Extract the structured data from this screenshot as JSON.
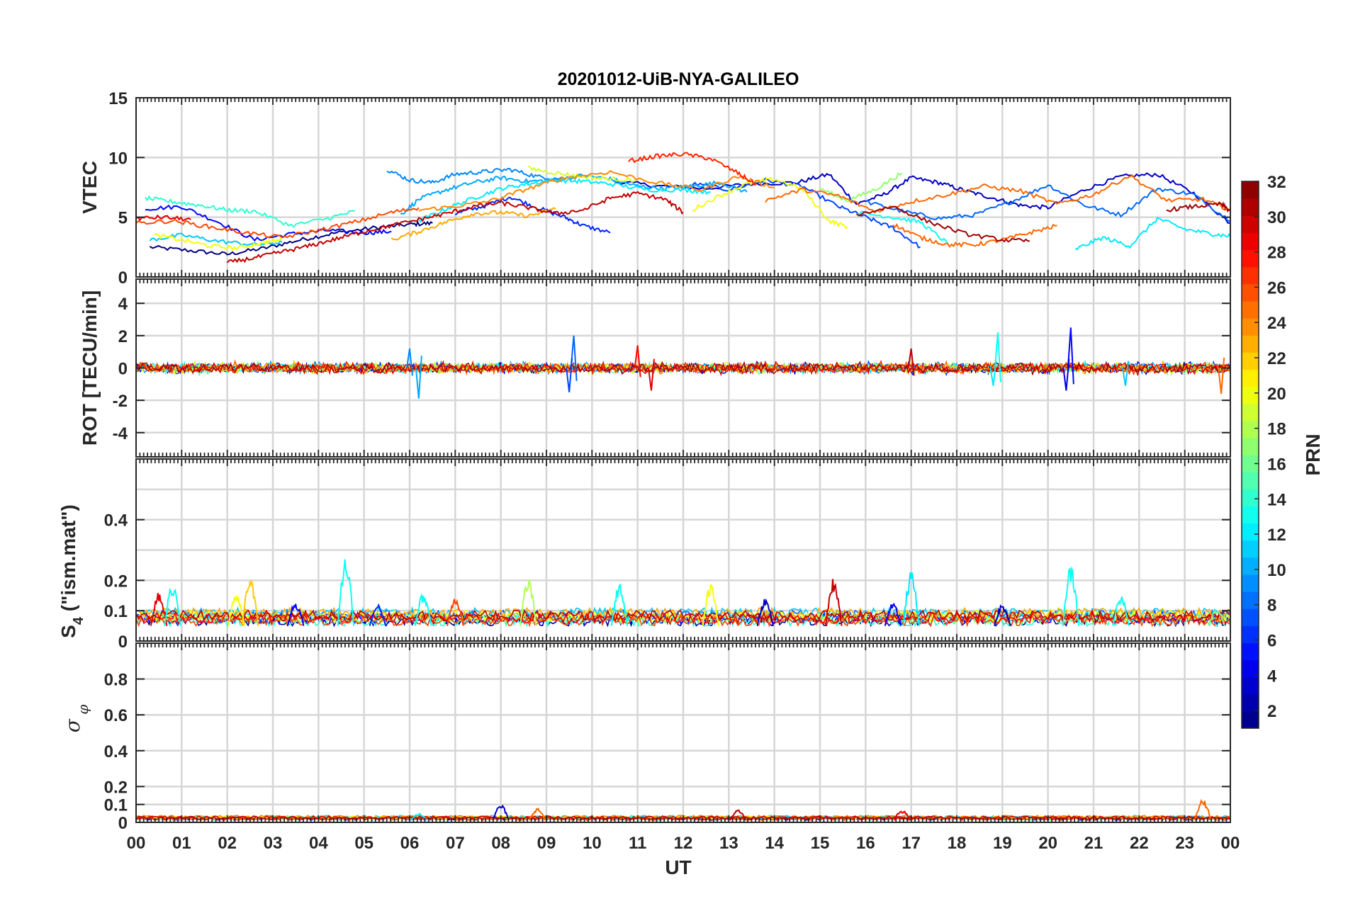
{
  "chart_data": {
    "type": "line",
    "title": "20201012-UiB-NYA-GALILEO",
    "xlabel": "UT",
    "x_tick_labels": [
      "00",
      "01",
      "02",
      "03",
      "04",
      "05",
      "06",
      "07",
      "08",
      "09",
      "10",
      "11",
      "12",
      "13",
      "14",
      "15",
      "16",
      "17",
      "18",
      "19",
      "20",
      "21",
      "22",
      "23",
      "00"
    ],
    "xlim": [
      0,
      24
    ],
    "grid": true,
    "colorbar": {
      "label": "PRN",
      "colormap": "jet",
      "clim": [
        1,
        32
      ],
      "tick_labels": [
        "2",
        "4",
        "6",
        "8",
        "10",
        "12",
        "14",
        "16",
        "18",
        "20",
        "22",
        "24",
        "26",
        "28",
        "30",
        "32"
      ]
    },
    "panels": [
      {
        "id": "vtec",
        "ylabel": "VTEC",
        "ylim": [
          0,
          15
        ],
        "y_tick_labels": [
          "0",
          "5",
          "10",
          "15"
        ],
        "series": [
          {
            "prn": 1,
            "x": [
              0.3,
              1.2,
              2.0,
              2.8,
              3.6,
              4.4,
              5.2,
              6.0,
              6.5
            ],
            "y": [
              2.5,
              2.2,
              1.9,
              2.4,
              3.1,
              3.7,
              4.1,
              4.4,
              4.5
            ]
          },
          {
            "prn": 3,
            "x": [
              10.5,
              11.5,
              12.5,
              13.5,
              14.5,
              15.2,
              15.8,
              16.4,
              17.0,
              17.6,
              18.2,
              18.8,
              19.4,
              20.0,
              20.8,
              21.6,
              22.4,
              23.2,
              24.0
            ],
            "y": [
              8.0,
              7.6,
              7.4,
              7.8,
              7.9,
              8.6,
              6.1,
              6.9,
              8.3,
              7.9,
              7.2,
              6.6,
              6.0,
              5.8,
              7.3,
              8.4,
              8.6,
              7.0,
              4.5
            ]
          },
          {
            "prn": 5,
            "x": [
              0.2,
              1.0,
              1.8,
              2.6,
              3.4,
              4.2,
              5.0,
              5.6
            ],
            "y": [
              5.7,
              5.9,
              4.6,
              3.1,
              3.6,
              3.9,
              3.7,
              3.8
            ]
          },
          {
            "prn": 6,
            "x": [
              7.0,
              7.6,
              8.2,
              8.8,
              9.4,
              9.8,
              10.4
            ],
            "y": [
              5.3,
              5.9,
              6.7,
              5.8,
              5.0,
              4.3,
              3.7
            ]
          },
          {
            "prn": 7,
            "x": [
              12.2,
              13.0,
              13.8,
              14.6,
              15.4,
              16.0,
              16.6,
              17.2
            ],
            "y": [
              7.8,
              7.3,
              8.1,
              7.6,
              5.9,
              5.0,
              4.1,
              2.5
            ]
          },
          {
            "prn": 8,
            "x": [
              16.0,
              16.8,
              17.6,
              18.4,
              19.2,
              20.0,
              20.8,
              21.6,
              22.4,
              23.2,
              24.0
            ],
            "y": [
              6.3,
              5.5,
              4.9,
              5.2,
              6.3,
              7.7,
              6.0,
              5.2,
              7.4,
              6.9,
              4.7
            ]
          },
          {
            "prn": 9,
            "x": [
              5.5,
              6.0,
              6.5,
              7.0,
              7.6,
              8.2,
              8.8,
              9.4
            ],
            "y": [
              9.0,
              8.1,
              7.9,
              8.6,
              8.8,
              9.0,
              8.4,
              8.2
            ]
          },
          {
            "prn": 10,
            "x": [
              5.8,
              6.2,
              6.8,
              7.4,
              8.0,
              8.6,
              9.2,
              9.8,
              10.4,
              11.0,
              11.6,
              12.2,
              12.8,
              13.4
            ],
            "y": [
              5.2,
              6.5,
              7.3,
              7.9,
              8.3,
              8.0,
              8.1,
              8.5,
              8.2,
              7.6,
              7.4,
              7.6,
              7.9,
              7.1
            ]
          },
          {
            "prn": 11,
            "x": [
              0.3,
              1.0,
              1.8,
              2.6,
              3.2
            ],
            "y": [
              3.1,
              3.5,
              3.0,
              2.7,
              2.9
            ]
          },
          {
            "prn": 12,
            "x": [
              6.2,
              6.8,
              7.4,
              8.0,
              8.6,
              9.2,
              9.8,
              10.4,
              11.2,
              12.0,
              12.6
            ],
            "y": [
              4.7,
              5.7,
              6.6,
              7.4,
              7.8,
              8.1,
              8.0,
              7.8,
              7.3,
              7.3,
              7.1
            ]
          },
          {
            "prn": 13,
            "x": [
              15.8,
              16.6,
              17.2,
              17.8
            ],
            "y": [
              5.4,
              5.0,
              4.6,
              2.8
            ]
          },
          {
            "prn": 14,
            "x": [
              0.2,
              0.8,
              1.4,
              2.0,
              2.6,
              3.4,
              4.2,
              4.8
            ],
            "y": [
              6.6,
              6.3,
              6.0,
              5.6,
              5.5,
              4.3,
              4.9,
              5.5
            ]
          },
          {
            "prn": 12,
            "x": [
              20.6,
              21.2,
              21.8,
              22.4,
              23.0,
              23.6,
              24.0
            ],
            "y": [
              2.3,
              3.3,
              2.6,
              4.9,
              4.0,
              3.6,
              3.4
            ]
          },
          {
            "prn": 17,
            "x": [
              15.0,
              15.6,
              16.2,
              16.8
            ],
            "y": [
              7.4,
              6.4,
              7.3,
              8.7
            ]
          },
          {
            "prn": 19,
            "x": [
              8.6,
              9.2,
              9.8,
              10.4,
              11.0
            ],
            "y": [
              9.1,
              8.7,
              8.4,
              8.2,
              8.1
            ]
          },
          {
            "prn": 20,
            "x": [
              0.4,
              1.0,
              1.6,
              2.2,
              2.8,
              3.2
            ],
            "y": [
              3.5,
              3.1,
              2.6,
              2.4,
              2.9,
              3.1
            ]
          },
          {
            "prn": 20,
            "x": [
              12.2,
              12.8,
              13.4,
              14.0,
              14.6,
              15.2,
              15.6
            ],
            "y": [
              5.6,
              6.8,
              7.8,
              8.2,
              7.4,
              4.7,
              4.2
            ]
          },
          {
            "prn": 23,
            "x": [
              5.6,
              6.2,
              6.8,
              7.4,
              8.0,
              8.6,
              9.2
            ],
            "y": [
              3.1,
              3.8,
              4.6,
              5.3,
              5.4,
              5.1,
              5.7
            ]
          },
          {
            "prn": 24,
            "x": [
              6.2,
              7.0,
              7.8,
              8.6,
              9.4,
              10.4,
              11.4,
              12.4,
              13.2,
              14.0
            ],
            "y": [
              5.6,
              5.9,
              6.4,
              7.4,
              8.3,
              8.8,
              7.9,
              7.3,
              8.4,
              7.5
            ]
          },
          {
            "prn": 25,
            "x": [
              13.8,
              14.6,
              15.4,
              16.2,
              17.0,
              17.8,
              18.6,
              19.4,
              20.2,
              21.0,
              21.8,
              22.6,
              23.4,
              24.0
            ],
            "y": [
              6.4,
              7.3,
              6.8,
              5.5,
              6.3,
              6.9,
              7.6,
              7.2,
              6.1,
              6.9,
              8.5,
              6.4,
              6.5,
              5.6
            ]
          },
          {
            "prn": 26,
            "x": [
              0.0,
              0.8,
              1.6,
              2.4,
              3.2,
              4.0,
              4.8,
              5.6,
              6.2
            ],
            "y": [
              4.5,
              4.7,
              4.2,
              3.7,
              3.3,
              3.9,
              4.6,
              5.4,
              5.8
            ]
          },
          {
            "prn": 25,
            "x": [
              16.6,
              17.2,
              17.8,
              18.4,
              19.0,
              19.6,
              20.2
            ],
            "y": [
              4.4,
              3.3,
              2.7,
              2.7,
              3.1,
              3.7,
              4.3
            ]
          },
          {
            "prn": 27,
            "x": [
              10.8,
              11.4,
              12.0,
              12.6,
              13.2,
              13.6
            ],
            "y": [
              9.7,
              10.1,
              10.3,
              9.9,
              8.7,
              7.7
            ]
          },
          {
            "prn": 29,
            "x": [
              0.0,
              0.6,
              1.2
            ],
            "y": [
              4.9,
              5.0,
              4.8
            ]
          },
          {
            "prn": 30,
            "x": [
              2.0,
              2.6,
              3.2,
              3.8,
              4.4,
              5.0,
              5.6,
              6.2,
              6.8,
              7.4,
              8.0,
              8.6,
              9.2,
              9.8,
              10.4,
              11.0,
              11.6,
              12.0
            ],
            "y": [
              1.2,
              1.6,
              2.1,
              2.6,
              3.2,
              3.8,
              4.3,
              4.8,
              5.3,
              5.9,
              6.2,
              5.8,
              5.3,
              5.6,
              6.6,
              7.0,
              6.5,
              5.4
            ]
          },
          {
            "prn": 31,
            "x": [
              15.8,
              16.6,
              17.4,
              18.2,
              19.0,
              19.6
            ],
            "y": [
              5.2,
              5.9,
              4.6,
              3.6,
              3.1,
              3.0
            ]
          },
          {
            "prn": 31,
            "x": [
              22.6,
              23.2,
              23.8,
              24.0
            ],
            "y": [
              5.6,
              5.9,
              6.1,
              5.5
            ]
          }
        ]
      },
      {
        "id": "rot",
        "ylabel": "ROT [TECU/min]",
        "ylim": [
          -5.5,
          5.5
        ],
        "y_tick_labels": [
          "-4",
          "-2",
          "0",
          "2",
          "4"
        ],
        "spikes": [
          {
            "x": 6.2,
            "y": -1.9,
            "prn": 10
          },
          {
            "x": 6.0,
            "y": 1.2,
            "prn": 9
          },
          {
            "x": 9.6,
            "y": 2.0,
            "prn": 8
          },
          {
            "x": 9.5,
            "y": -1.5,
            "prn": 7
          },
          {
            "x": 11.0,
            "y": 1.4,
            "prn": 28
          },
          {
            "x": 11.3,
            "y": -1.4,
            "prn": 29
          },
          {
            "x": 17.0,
            "y": 1.2,
            "prn": 30
          },
          {
            "x": 18.9,
            "y": 2.2,
            "prn": 13
          },
          {
            "x": 18.8,
            "y": -1.1,
            "prn": 12
          },
          {
            "x": 20.5,
            "y": 2.5,
            "prn": 5
          },
          {
            "x": 20.4,
            "y": -1.4,
            "prn": 4
          },
          {
            "x": 23.8,
            "y": -1.6,
            "prn": 25
          },
          {
            "x": 21.7,
            "y": -1.1,
            "prn": 11
          }
        ]
      },
      {
        "id": "s4",
        "ylabel": "S4 (\"ism.mat\")",
        "ylabel_base": "S",
        "ylabel_sub": "4",
        "ylabel_rest": " (\"ism.mat\")",
        "ylim": [
          0,
          0.6
        ],
        "y_tick_labels": [
          "0",
          "0.1",
          "0.2",
          "0.4"
        ],
        "peaks": [
          {
            "x": 0.5,
            "y": 0.16,
            "prn": 29
          },
          {
            "x": 0.8,
            "y": 0.19,
            "prn": 13
          },
          {
            "x": 2.5,
            "y": 0.22,
            "prn": 22
          },
          {
            "x": 2.2,
            "y": 0.16,
            "prn": 20
          },
          {
            "x": 3.5,
            "y": 0.13,
            "prn": 5
          },
          {
            "x": 4.6,
            "y": 0.28,
            "prn": 13
          },
          {
            "x": 5.3,
            "y": 0.12,
            "prn": 6
          },
          {
            "x": 6.3,
            "y": 0.16,
            "prn": 13
          },
          {
            "x": 7.0,
            "y": 0.15,
            "prn": 26
          },
          {
            "x": 8.6,
            "y": 0.21,
            "prn": 18
          },
          {
            "x": 10.6,
            "y": 0.19,
            "prn": 13
          },
          {
            "x": 12.6,
            "y": 0.19,
            "prn": 20
          },
          {
            "x": 13.8,
            "y": 0.14,
            "prn": 3
          },
          {
            "x": 15.3,
            "y": 0.21,
            "prn": 30
          },
          {
            "x": 16.6,
            "y": 0.13,
            "prn": 5
          },
          {
            "x": 17.0,
            "y": 0.23,
            "prn": 12
          },
          {
            "x": 19.0,
            "y": 0.12,
            "prn": 3
          },
          {
            "x": 20.5,
            "y": 0.25,
            "prn": 13
          },
          {
            "x": 21.6,
            "y": 0.15,
            "prn": 13
          },
          {
            "x": 23.7,
            "y": 0.11,
            "prn": 16
          }
        ]
      },
      {
        "id": "sigma",
        "ylabel": "σ φ",
        "ylabel_base": "σ",
        "ylabel_sub": "φ",
        "ylim": [
          0,
          1
        ],
        "y_tick_labels": [
          "0",
          "0.1",
          "0.2",
          "0.4",
          "0.6",
          "0.8"
        ],
        "peaks": [
          {
            "x": 8.0,
            "y": 0.1,
            "prn": 3
          },
          {
            "x": 8.8,
            "y": 0.08,
            "prn": 25
          },
          {
            "x": 13.2,
            "y": 0.07,
            "prn": 30
          },
          {
            "x": 16.8,
            "y": 0.07,
            "prn": 29
          },
          {
            "x": 23.4,
            "y": 0.13,
            "prn": 25
          },
          {
            "x": 6.2,
            "y": 0.05,
            "prn": 12
          }
        ]
      }
    ]
  }
}
